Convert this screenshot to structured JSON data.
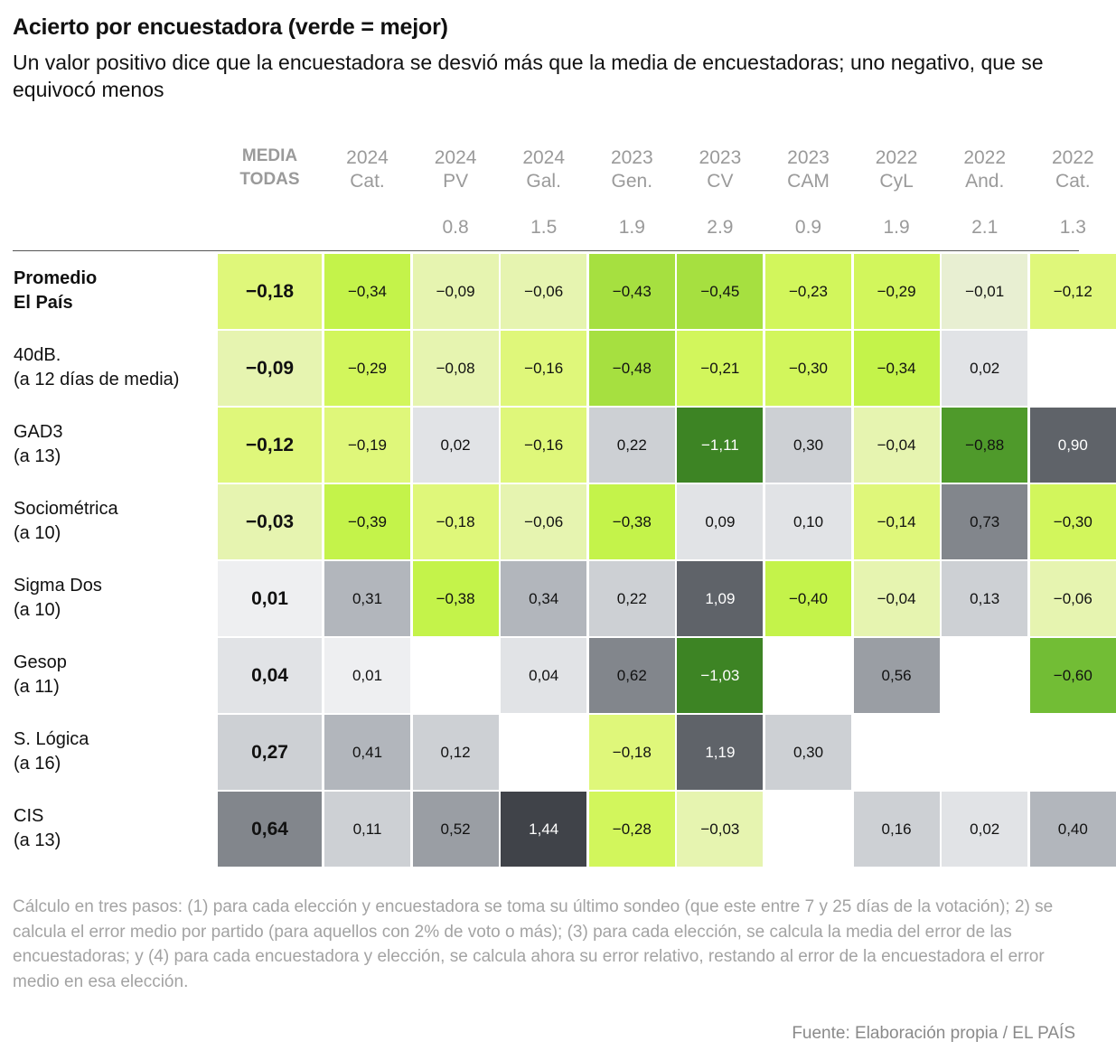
{
  "title": "Acierto por encuestadora (verde = mejor)",
  "subtitle": "Un valor positivo dice que la encuestadora se desvió más que la media de encuestadoras; uno negativo, que se equivocó menos",
  "chart_data": {
    "type": "heatmap",
    "media_header": [
      "MEDIA",
      "TODAS"
    ],
    "columns": [
      {
        "year": "2024",
        "name": "Cat.",
        "ref": ""
      },
      {
        "year": "2024",
        "name": "PV",
        "ref": "0.8"
      },
      {
        "year": "2024",
        "name": "Gal.",
        "ref": "1.5"
      },
      {
        "year": "2023",
        "name": "Gen.",
        "ref": "1.9"
      },
      {
        "year": "2023",
        "name": "CV",
        "ref": "2.9"
      },
      {
        "year": "2023",
        "name": "CAM",
        "ref": "0.9"
      },
      {
        "year": "2022",
        "name": "CyL",
        "ref": "1.9"
      },
      {
        "year": "2022",
        "name": "And.",
        "ref": "2.1"
      },
      {
        "year": "2022",
        "name": "Cat.",
        "ref": "1.3"
      }
    ],
    "rows": [
      {
        "label": [
          "Promedio",
          "El País"
        ],
        "bold": true,
        "media": -0.18,
        "values": [
          -0.34,
          -0.09,
          -0.06,
          -0.43,
          -0.45,
          -0.23,
          -0.29,
          -0.01,
          -0.12
        ]
      },
      {
        "label": [
          "40dB.",
          "(a 12 días de media)"
        ],
        "bold": false,
        "media": -0.09,
        "values": [
          -0.29,
          -0.08,
          -0.16,
          -0.48,
          -0.21,
          -0.3,
          -0.34,
          0.02,
          null
        ]
      },
      {
        "label": [
          "GAD3",
          "(a 13)"
        ],
        "bold": false,
        "media": -0.12,
        "values": [
          -0.19,
          0.02,
          -0.16,
          0.22,
          -1.11,
          0.3,
          -0.04,
          -0.88,
          0.9
        ]
      },
      {
        "label": [
          "Sociométrica",
          "(a 10)"
        ],
        "bold": false,
        "media": -0.03,
        "values": [
          -0.39,
          -0.18,
          -0.06,
          -0.38,
          0.09,
          0.1,
          -0.14,
          0.73,
          -0.3
        ]
      },
      {
        "label": [
          "Sigma Dos",
          "(a 10)"
        ],
        "bold": false,
        "media": 0.01,
        "values": [
          0.31,
          -0.38,
          0.34,
          0.22,
          1.09,
          -0.4,
          -0.04,
          0.13,
          -0.06
        ]
      },
      {
        "label": [
          "Gesop",
          "(a 11)"
        ],
        "bold": false,
        "media": 0.04,
        "values": [
          0.01,
          null,
          0.04,
          0.62,
          -1.03,
          null,
          0.56,
          null,
          -0.6
        ]
      },
      {
        "label": [
          "S. Lógica",
          "(a 16)"
        ],
        "bold": false,
        "media": 0.27,
        "values": [
          0.41,
          0.12,
          null,
          -0.18,
          1.19,
          0.3,
          null,
          null,
          null
        ]
      },
      {
        "label": [
          "CIS",
          "(a 13)"
        ],
        "bold": false,
        "media": 0.64,
        "values": [
          0.11,
          0.52,
          1.44,
          -0.28,
          -0.03,
          null,
          0.16,
          0.02,
          0.4
        ]
      }
    ],
    "color_scale": {
      "negative": [
        "#e8efd2",
        "#e6f4b0",
        "#dff77a",
        "#d2f65c",
        "#c4f34a",
        "#a6e040",
        "#72bd35",
        "#4f9a2b",
        "#3d8424"
      ],
      "positive": [
        "#eeeff1",
        "#e1e3e6",
        "#cdd0d4",
        "#b2b6bc",
        "#9a9ea4",
        "#82868c",
        "#5f6369",
        "#404349"
      ]
    }
  },
  "note": "Cálculo en tres pasos: (1) para cada elección y encuestadora se toma su último sondeo (que este entre 7 y 25 días de la votación); 2) se calcula el error medio por partido (para aquellos con 2% de voto o más); (3) para cada elección, se calcula la media del error de las encuestadoras; y (4) para cada encuestadora y elección, se calcula ahora su error relativo, restando al error de la encuestadora el error medio en esa elección.",
  "source": "Fuente: Elaboración propia / EL PAÍS"
}
